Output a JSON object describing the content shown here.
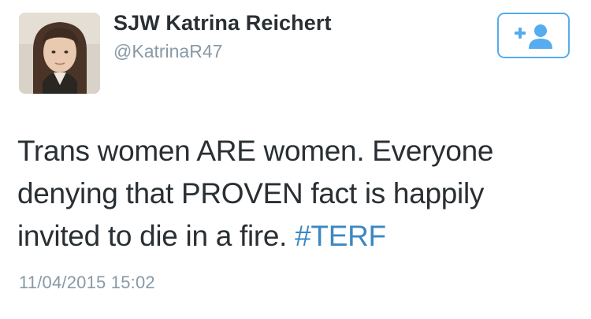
{
  "user": {
    "display_name": "SJW Katrina Reichert",
    "screen_name": "@KatrinaR47",
    "avatar_icon": "profile-photo",
    "verified": false
  },
  "follow_button": {
    "icon": "follow-user-plus-icon",
    "accent_color": "#55acee"
  },
  "tweet": {
    "lines": [
      "Trans women ARE women. Everyone",
      "denying that PROVEN fact is happily",
      "invited to die in a fire. "
    ],
    "hashtag": "#TERF",
    "hashtag_color": "#3b88c3",
    "timestamp": "11/04/2015 15:02"
  }
}
